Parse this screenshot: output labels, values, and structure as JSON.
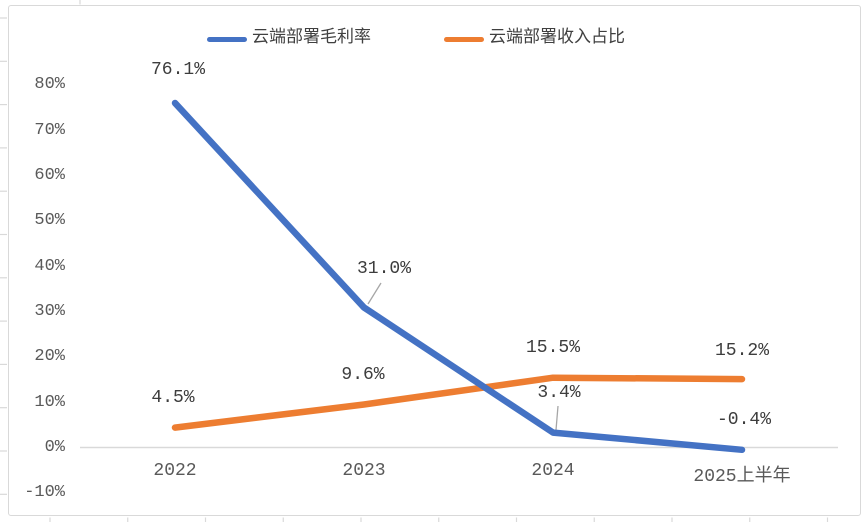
{
  "chart_data": {
    "type": "line",
    "categories": [
      "2022",
      "2023",
      "2024",
      "2025上半年"
    ],
    "series": [
      {
        "name": "云端部署毛利率",
        "color": "#4472C4",
        "values": [
          76.1,
          31.0,
          3.4,
          -0.4
        ],
        "labels": [
          "76.1%",
          "31.0%",
          "3.4%",
          "-0.4%"
        ]
      },
      {
        "name": "云端部署收入占比",
        "color": "#ED7D31",
        "values": [
          4.5,
          9.6,
          15.5,
          15.2
        ],
        "labels": [
          "4.5%",
          "9.6%",
          "15.5%",
          "15.2%"
        ]
      }
    ],
    "y_ticks": [
      "80%",
      "70%",
      "60%",
      "50%",
      "40%",
      "30%",
      "20%",
      "10%",
      "0%",
      "-10%"
    ],
    "y_tick_values": [
      80,
      70,
      60,
      50,
      40,
      30,
      20,
      10,
      0,
      -10
    ],
    "ylim": [
      -10,
      80
    ],
    "grid": "off",
    "legend_position": "top"
  },
  "colors": {
    "series_blue": "#4472C4",
    "series_orange": "#ED7D31",
    "axis_line": "#D9D9D9",
    "chart_border": "#D9D9D9",
    "leader_line": "#A6A6A6",
    "axis_text": "#595959",
    "data_label_text": "#3D3D3D"
  }
}
